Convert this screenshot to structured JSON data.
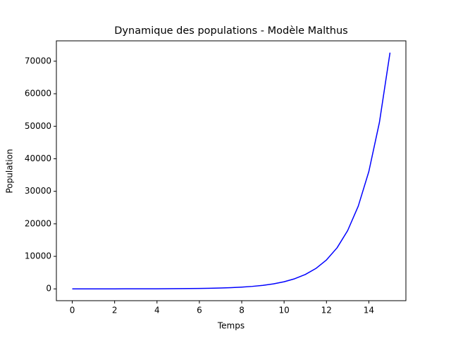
{
  "chart_data": {
    "type": "line",
    "title": "Dynamique des populations - Modèle Malthus",
    "x_label": "Temps",
    "y_label": "Population",
    "x": [
      0,
      0.5,
      1,
      1.5,
      2,
      2.5,
      3,
      3.5,
      4,
      4.5,
      5,
      5.5,
      6,
      6.5,
      7,
      7.5,
      8,
      8.5,
      9,
      9.5,
      10,
      10.5,
      11,
      11.5,
      12,
      12.5,
      13,
      13.5,
      14,
      14.5,
      15
    ],
    "series": [
      {
        "color": "#0000ff",
        "values": [
          2,
          2.84,
          4.03,
          5.72,
          8.11,
          11.51,
          16.33,
          23.18,
          32.89,
          46.67,
          66.23,
          93.97,
          133.4,
          189.3,
          268.6,
          381.1,
          540.9,
          767.5,
          1089,
          1546,
          2193,
          3112,
          4417,
          6268,
          8894,
          12622,
          17911,
          25416,
          36068,
          51182,
          72631
        ]
      }
    ],
    "xlim": [
      -0.75,
      15.75
    ],
    "xticks": [
      0,
      2,
      4,
      6,
      8,
      10,
      12,
      14
    ],
    "ylim": [
      -3630,
      76260
    ],
    "yticks": [
      0,
      10000,
      20000,
      30000,
      40000,
      50000,
      60000,
      70000
    ],
    "grid": false
  }
}
